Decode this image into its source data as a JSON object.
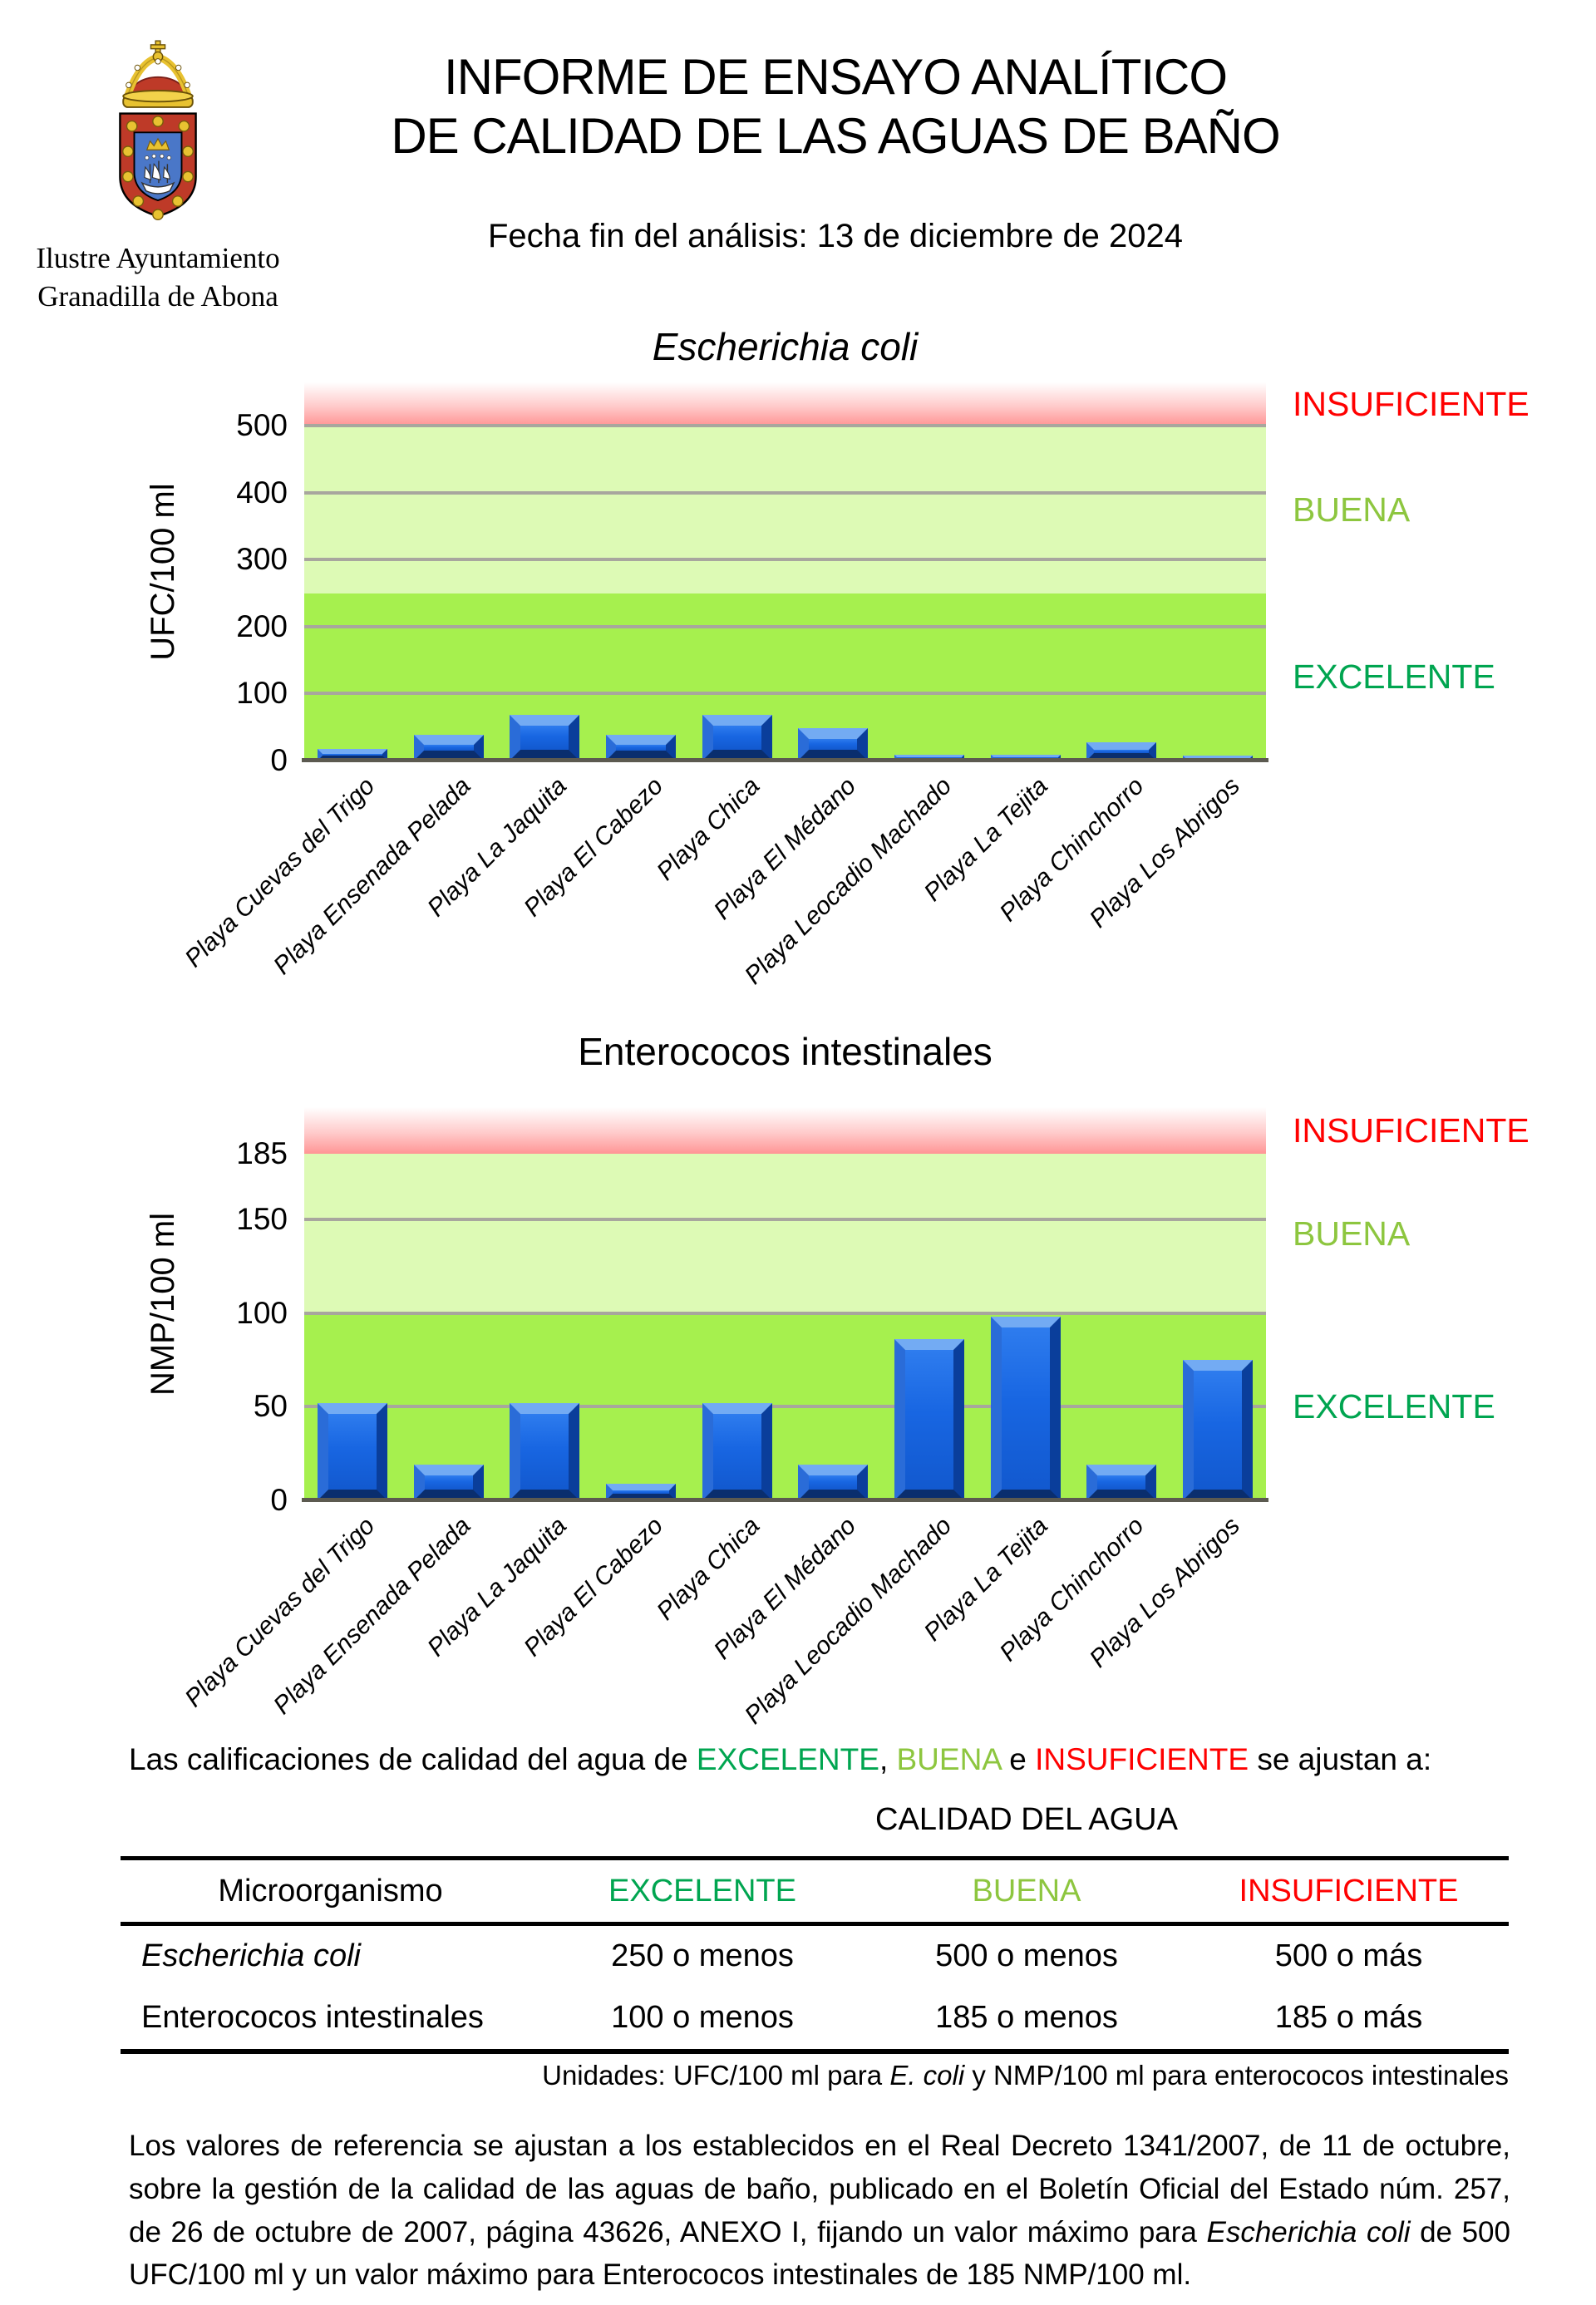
{
  "header": {
    "org_line1": "Ilustre Ayuntamiento",
    "org_line2": "Granadilla de Abona",
    "title_line1": "INFORME DE ENSAYO ANALÍTICO",
    "title_line2": "DE CALIDAD DE LAS AGUAS DE BAÑO",
    "date_line": "Fecha fin del análisis: 13 de diciembre de 2024"
  },
  "colors": {
    "excellent_label": "#00A550",
    "good_label": "#8DC63F",
    "insufficient_label": "#FF0000",
    "zone_excellent": "#A6F04E",
    "zone_good": "#DDFAB5",
    "zone_insufficient_bottom": "#FF9595",
    "bar_face": "#1866E2",
    "gridline": "#A8A69E",
    "axis_line": "#5C5A50"
  },
  "chart_data": [
    {
      "type": "bar",
      "title": "Escherichia coli",
      "ylabel": "UFC/100 ml",
      "categories": [
        "Playa Cuevas del Trigo",
        "Playa Ensenada Pelada",
        "Playa La Jaquita",
        "Playa El Cabezo",
        "Playa Chica",
        "Playa El Médano",
        "Playa Leocadio Machado",
        "Playa La Tejita",
        "Playa Chinchorro",
        "Playa Los Abrigos"
      ],
      "values": [
        18,
        38,
        68,
        38,
        68,
        48,
        9,
        9,
        27,
        8
      ],
      "yticks": [
        0,
        100,
        200,
        300,
        400,
        500
      ],
      "gridlines": [
        100,
        200,
        300,
        400,
        500
      ],
      "ylim": [
        0,
        565
      ],
      "zones": [
        {
          "label": "EXCELENTE",
          "key": "excellent",
          "from": 0,
          "to": 250
        },
        {
          "label": "BUENA",
          "key": "good",
          "from": 250,
          "to": 500
        },
        {
          "label": "INSUFICIENTE",
          "key": "insufficient",
          "from": 500,
          "to": 565
        }
      ]
    },
    {
      "type": "bar",
      "title": "Enterococos intestinales",
      "ylabel": "NMP/100 ml",
      "categories": [
        "Playa Cuevas del Trigo",
        "Playa Ensenada Pelada",
        "Playa La Jaquita",
        "Playa El Cabezo",
        "Playa Chica",
        "Playa El Médano",
        "Playa Leocadio Machado",
        "Playa La Tejita",
        "Playa Chinchorro",
        "Playa Los Abrigos"
      ],
      "values": [
        52,
        19,
        52,
        9,
        52,
        19,
        86,
        98,
        19,
        75
      ],
      "yticks": [
        0,
        50,
        100,
        150,
        185
      ],
      "gridlines": [
        50,
        100,
        150
      ],
      "ylim": [
        0,
        210
      ],
      "zones": [
        {
          "label": "EXCELENTE",
          "key": "excellent",
          "from": 0,
          "to": 100
        },
        {
          "label": "BUENA",
          "key": "good",
          "from": 100,
          "to": 185
        },
        {
          "label": "INSUFICIENTE",
          "key": "insufficient",
          "from": 185,
          "to": 210
        }
      ]
    }
  ],
  "qualifications_line": {
    "prefix": "Las calificaciones de calidad del agua de ",
    "excellent": "EXCELENTE",
    "sep1": ", ",
    "good": "BUENA",
    "sep2": " e ",
    "insufficient": "INSUFICIENTE",
    "suffix": " se ajustan a:"
  },
  "table": {
    "title": "CALIDAD DEL AGUA",
    "headers": [
      "Microorganismo",
      "EXCELENTE",
      "BUENA",
      "INSUFICIENTE"
    ],
    "rows": [
      {
        "name": "Escherichia coli",
        "excellent": "250 o menos",
        "good": "500 o menos",
        "insufficient": "500 o más"
      },
      {
        "name": "Enterococos intestinales",
        "excellent": "100 o menos",
        "good": "185 o menos",
        "insufficient": "185 o más"
      }
    ]
  },
  "units_line": {
    "prefix": "Unidades: UFC/100 ml para ",
    "italic": "E. coli",
    "suffix": " y NMP/100 ml para enterococos intestinales"
  },
  "footer_paragraph": {
    "part1": "Los valores de referencia se ajustan a los establecidos en el Real Decreto 1341/2007, de 11 de octubre, sobre la gestión de la calidad de las aguas de baño, publicado en el Boletín Oficial del Estado núm. 257, de 26 de octubre de 2007, página 43626, ANEXO I, fijando un valor máximo para ",
    "italic1": "Escherichia coli",
    "part2": " de 500 UFC/100 ml y un valor máximo para Enterococos intestinales de 185 NMP/100 ml."
  }
}
